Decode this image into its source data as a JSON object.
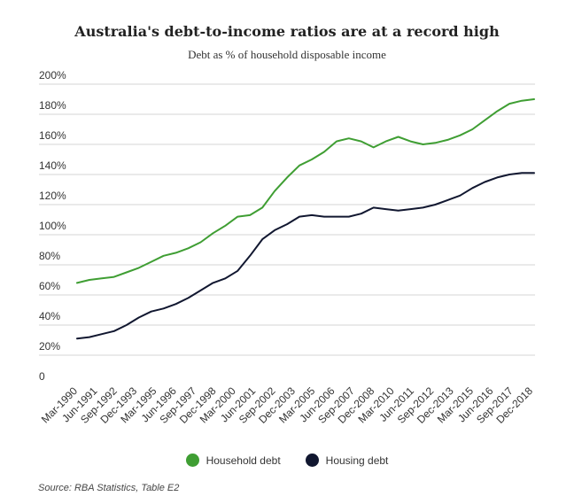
{
  "chart_data": {
    "type": "line",
    "title": "Australia's debt-to-income ratios are at a record high",
    "subtitle": "Debt as % of household disposable income",
    "ylim": [
      0,
      200
    ],
    "y_ticks": [
      "0",
      "20%",
      "40%",
      "60%",
      "80%",
      "100%",
      "120%",
      "140%",
      "160%",
      "180%",
      "200%"
    ],
    "x_tick_labels": [
      "Mar-1990",
      "Jun-1991",
      "Sep-1992",
      "Dec-1993",
      "Mar-1995",
      "Jun-1996",
      "Sep-1997",
      "Dec-1998",
      "Mar-2000",
      "Jun-2001",
      "Sep-2002",
      "Dec-2003",
      "Mar-2005",
      "Jun-2006",
      "Sep-2007",
      "Dec-2008",
      "Mar-2010",
      "Jun-2011",
      "Sep-2012",
      "Dec-2013",
      "Mar-2015",
      "Jun-2016",
      "Sep-2017",
      "Dec-2018"
    ],
    "grid": true,
    "legend_position": "bottom",
    "series": [
      {
        "name": "Household debt",
        "color": "#3f9e33",
        "values": [
          68,
          70,
          71,
          72,
          75,
          78,
          82,
          86,
          88,
          91,
          95,
          101,
          106,
          112,
          113,
          118,
          129,
          138,
          146,
          150,
          155,
          162,
          164,
          162,
          158,
          162,
          165,
          162,
          160,
          161,
          163,
          166,
          170,
          176,
          182,
          187,
          189,
          190
        ]
      },
      {
        "name": "Housing debt",
        "color": "#111730",
        "values": [
          31,
          32,
          34,
          36,
          40,
          45,
          49,
          51,
          54,
          58,
          63,
          68,
          71,
          76,
          86,
          97,
          103,
          107,
          112,
          113,
          112,
          112,
          112,
          114,
          118,
          117,
          116,
          117,
          118,
          120,
          123,
          126,
          131,
          135,
          138,
          140,
          141,
          141
        ]
      }
    ]
  },
  "legend": {
    "household_label": "Household debt",
    "housing_label": "Housing debt",
    "household_color": "#3f9e33",
    "housing_color": "#111730"
  },
  "source": "Source: RBA Statistics, Table E2"
}
